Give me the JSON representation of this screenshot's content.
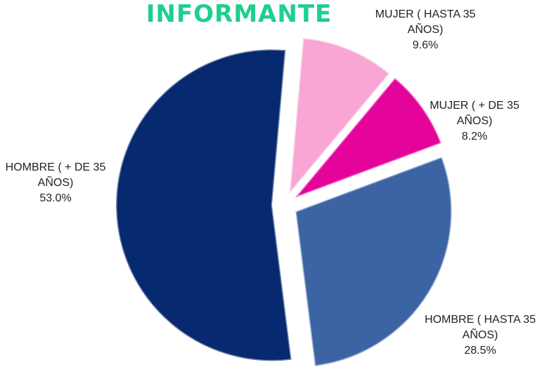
{
  "chart_data": {
    "type": "pie",
    "title": "INFORMANTE",
    "categories": [
      "MUJER ( HASTA 35 AÑOS)",
      "MUJER ( + DE 35 AÑOS)",
      "HOMBRE ( HASTA 35 AÑOS)",
      "HOMBRE ( + DE 35 AÑOS)"
    ],
    "values": [
      9.6,
      8.2,
      28.5,
      53.0
    ],
    "value_labels": [
      "9.6%",
      "8.2%",
      "28.5%",
      "53.0%"
    ],
    "colors": [
      "#f9a6d4",
      "#e4049c",
      "#3c64a4",
      "#07296f"
    ]
  }
}
